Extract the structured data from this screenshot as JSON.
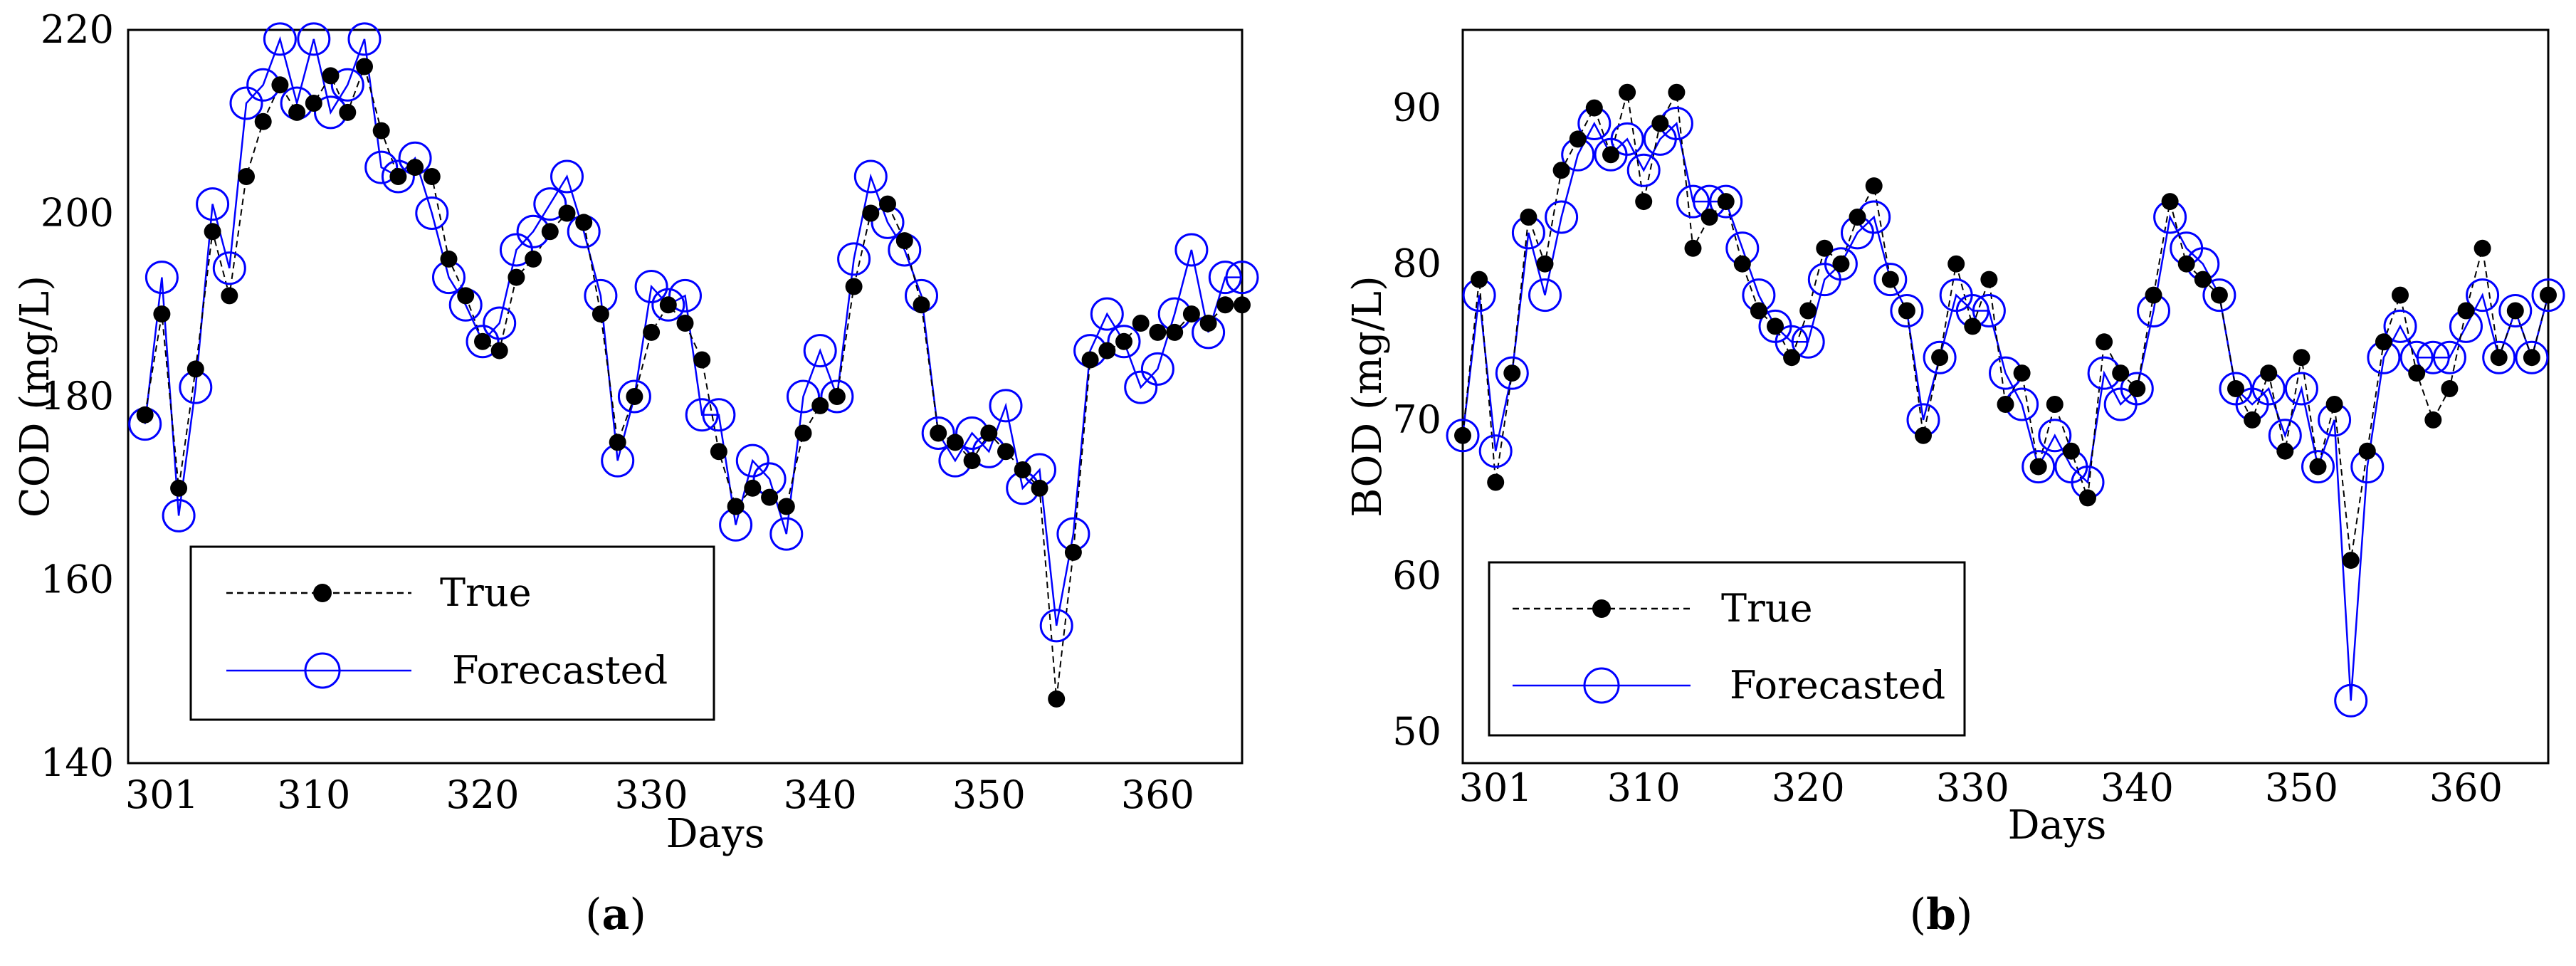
{
  "chart_data": [
    {
      "type": "line",
      "panel_label": "a",
      "caption_open": "(",
      "caption_close": ")",
      "ylabel": "COD (mg/L)",
      "xlabel": "Days",
      "xlim": [
        299,
        365
      ],
      "ylim": [
        140,
        220
      ],
      "x_ticks": [
        {
          "value": 301,
          "label": "301"
        },
        {
          "value": 310,
          "label": "310"
        },
        {
          "value": 320,
          "label": "320"
        },
        {
          "value": 330,
          "label": "330"
        },
        {
          "value": 340,
          "label": "340"
        },
        {
          "value": 350,
          "label": "350"
        },
        {
          "value": 360,
          "label": "360"
        }
      ],
      "y_ticks": [
        {
          "value": 140,
          "label": "140"
        },
        {
          "value": 160,
          "label": "160"
        },
        {
          "value": 180,
          "label": "180"
        },
        {
          "value": 200,
          "label": "200"
        },
        {
          "value": 220,
          "label": "220"
        }
      ],
      "x": [
        300,
        301,
        302,
        303,
        304,
        305,
        306,
        307,
        308,
        309,
        310,
        311,
        312,
        313,
        314,
        315,
        316,
        317,
        318,
        319,
        320,
        321,
        322,
        323,
        324,
        325,
        326,
        327,
        328,
        329,
        330,
        331,
        332,
        333,
        334,
        335,
        336,
        337,
        338,
        339,
        340,
        341,
        342,
        343,
        344,
        345,
        346,
        347,
        348,
        349,
        350,
        351,
        352,
        353,
        354,
        355,
        356,
        357,
        358,
        359,
        360,
        361,
        362,
        363,
        364,
        365
      ],
      "series": [
        {
          "name": "True",
          "values": [
            178,
            189,
            170,
            183,
            198,
            191,
            204,
            210,
            214,
            211,
            212,
            215,
            211,
            216,
            209,
            204,
            205,
            204,
            195,
            191,
            186,
            185,
            193,
            195,
            198,
            200,
            199,
            189,
            175,
            180,
            187,
            190,
            188,
            184,
            174,
            168,
            170,
            169,
            168,
            176,
            179,
            180,
            192,
            200,
            201,
            197,
            190,
            176,
            175,
            173,
            176,
            174,
            172,
            170,
            147,
            163,
            184,
            185,
            186,
            188,
            187,
            187,
            189,
            188,
            190,
            190
          ],
          "color": "#000000",
          "linestyle": "dashed",
          "marker": "filled-circle"
        },
        {
          "name": "Forecasted",
          "values": [
            177,
            193,
            167,
            181,
            201,
            194,
            212,
            214,
            219,
            212,
            219,
            211,
            214,
            219,
            205,
            204,
            206,
            200,
            193,
            190,
            186,
            188,
            196,
            198,
            201,
            204,
            198,
            191,
            173,
            180,
            192,
            190,
            191,
            178,
            178,
            166,
            173,
            171,
            165,
            180,
            185,
            180,
            195,
            204,
            199,
            196,
            191,
            176,
            173,
            176,
            174,
            179,
            170,
            172,
            155,
            165,
            185,
            189,
            186,
            181,
            183,
            189,
            196,
            187,
            193,
            193
          ],
          "color": "#0000ff",
          "linestyle": "solid",
          "marker": "open-circle"
        }
      ],
      "legend": {
        "position": "lower-left",
        "entries": [
          "True",
          "Forecasted"
        ]
      }
    },
    {
      "type": "line",
      "panel_label": "b",
      "caption_open": "(",
      "caption_close": ")",
      "ylabel": "BOD (mg/L)",
      "xlabel": "Days",
      "xlim": [
        299,
        365
      ],
      "ylim": [
        48,
        95
      ],
      "x_ticks": [
        {
          "value": 301,
          "label": "301"
        },
        {
          "value": 310,
          "label": "310"
        },
        {
          "value": 320,
          "label": "320"
        },
        {
          "value": 330,
          "label": "330"
        },
        {
          "value": 340,
          "label": "340"
        },
        {
          "value": 350,
          "label": "350"
        },
        {
          "value": 360,
          "label": "360"
        }
      ],
      "y_ticks": [
        {
          "value": 50,
          "label": "50"
        },
        {
          "value": 60,
          "label": "60"
        },
        {
          "value": 70,
          "label": "70"
        },
        {
          "value": 80,
          "label": "80"
        },
        {
          "value": 90,
          "label": "90"
        }
      ],
      "x": [
        299,
        300,
        301,
        302,
        303,
        304,
        305,
        306,
        307,
        308,
        309,
        310,
        311,
        312,
        313,
        314,
        315,
        316,
        317,
        318,
        319,
        320,
        321,
        322,
        323,
        324,
        325,
        326,
        327,
        328,
        329,
        330,
        331,
        332,
        333,
        334,
        335,
        336,
        337,
        338,
        339,
        340,
        341,
        342,
        343,
        344,
        345,
        346,
        347,
        348,
        349,
        350,
        351,
        352,
        353,
        354,
        355,
        356,
        357,
        358,
        359,
        360,
        361,
        362,
        363,
        364,
        365
      ],
      "series": [
        {
          "name": "True",
          "values": [
            69,
            79,
            66,
            73,
            83,
            80,
            86,
            88,
            90,
            87,
            91,
            84,
            89,
            91,
            81,
            83,
            84,
            80,
            77,
            76,
            74,
            77,
            81,
            80,
            83,
            85,
            79,
            77,
            69,
            74,
            80,
            76,
            79,
            71,
            73,
            67,
            71,
            68,
            65,
            75,
            73,
            72,
            78,
            84,
            80,
            79,
            78,
            72,
            70,
            73,
            68,
            74,
            67,
            71,
            61,
            68,
            75,
            78,
            73,
            70,
            72,
            77,
            81,
            74,
            77,
            74,
            78
          ],
          "color": "#000000",
          "linestyle": "dashed",
          "marker": "filled-circle"
        },
        {
          "name": "Forecasted",
          "values": [
            69,
            78,
            68,
            73,
            82,
            78,
            83,
            87,
            89,
            87,
            88,
            86,
            88,
            89,
            84,
            84,
            84,
            81,
            78,
            76,
            75,
            75,
            79,
            80,
            82,
            83,
            79,
            77,
            70,
            74,
            78,
            77,
            77,
            73,
            71,
            67,
            69,
            67,
            66,
            73,
            71,
            72,
            77,
            83,
            81,
            80,
            78,
            72,
            71,
            72,
            69,
            72,
            67,
            70,
            52,
            67,
            74,
            76,
            74,
            74,
            74,
            76,
            78,
            74,
            77,
            74,
            78
          ],
          "color": "#0000ff",
          "linestyle": "solid",
          "marker": "open-circle"
        }
      ],
      "legend": {
        "position": "lower-left",
        "entries": [
          "True",
          "Forecasted"
        ]
      }
    }
  ]
}
